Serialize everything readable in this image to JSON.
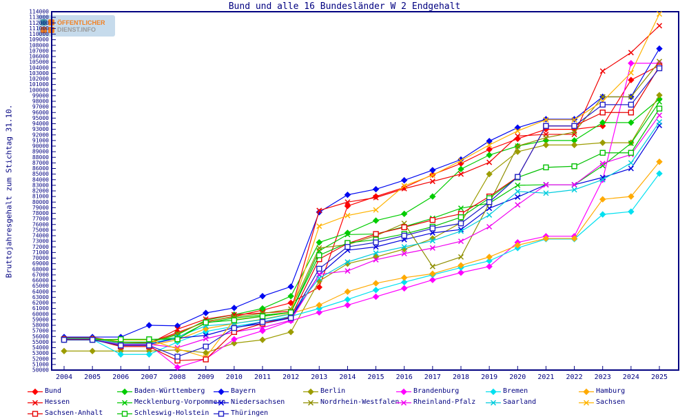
{
  "header": {
    "title": "Bund und alle 16 Bundesländer W 2 Endgehalt",
    "logo": {
      "line1": "ÖFFENTLICHER",
      "line2": "DIENST.INFO"
    }
  },
  "colors": {
    "axis": "#000080",
    "text": "#000080",
    "background": "#ffffff",
    "logo_bg": "#c6dbec",
    "logo_orange": "#f28122",
    "logo_teal": "#3f96a5",
    "logo_gray": "#9b9b9b"
  },
  "chart_data": {
    "type": "line",
    "title": "Bund und alle 16 Bundesländer W 2 Endgehalt",
    "xlabel": "",
    "ylabel": "Bruttojahresgehalt zum Stichtag 31.10.",
    "ylim": [
      50000,
      114000
    ],
    "y_tick_step": 1000,
    "grid": false,
    "legend_position": "bottom",
    "x": [
      2004,
      2005,
      2006,
      2007,
      2008,
      2009,
      2010,
      2011,
      2012,
      2013,
      2014,
      2015,
      2016,
      2017,
      2018,
      2019,
      2020,
      2021,
      2022,
      2023,
      2024,
      2025
    ],
    "series": [
      {
        "name": "Bund",
        "color": "#ff0000",
        "marker": "diamond",
        "values": [
          55800,
          55800,
          55000,
          54900,
          56700,
          58600,
          59600,
          60700,
          62000,
          64800,
          79300,
          81000,
          82600,
          84900,
          86900,
          89400,
          91300,
          93000,
          93000,
          93600,
          101800,
          104400
        ]
      },
      {
        "name": "Baden-Württemberg",
        "color": "#00cc00",
        "marker": "diamond",
        "values": [
          55700,
          55700,
          55000,
          55000,
          56300,
          58900,
          59900,
          61000,
          63200,
          72800,
          74500,
          76700,
          77900,
          81000,
          85900,
          88400,
          90000,
          91000,
          91000,
          94200,
          94200,
          98400
        ]
      },
      {
        "name": "Bayern",
        "color": "#0008f0",
        "marker": "diamond",
        "values": [
          55900,
          55900,
          55900,
          58000,
          57900,
          60200,
          61100,
          63200,
          64900,
          78200,
          81300,
          82300,
          83900,
          85700,
          87600,
          90900,
          93300,
          94800,
          94800,
          98800,
          98800,
          107400
        ]
      },
      {
        "name": "Berlin",
        "color": "#9c9c00",
        "marker": "diamond",
        "values": [
          53400,
          53400,
          53400,
          53400,
          53600,
          53100,
          54800,
          55400,
          56800,
          65900,
          69000,
          70200,
          71600,
          73500,
          76300,
          85000,
          89000,
          90200,
          90200,
          90600,
          90600,
          99100
        ]
      },
      {
        "name": "Brandenburg",
        "color": "#ff00ff",
        "marker": "diamond",
        "values": [
          55400,
          55400,
          54500,
          54500,
          50500,
          52000,
          55500,
          57000,
          58800,
          60300,
          61600,
          63100,
          64600,
          66100,
          67400,
          68500,
          72800,
          73900,
          73900,
          84000,
          104800,
          104800
        ]
      },
      {
        "name": "Bremen",
        "color": "#00e0f0",
        "marker": "diamond",
        "values": [
          55500,
          55500,
          52800,
          52800,
          55000,
          56900,
          57800,
          58600,
          59600,
          61000,
          62600,
          64300,
          65700,
          67000,
          68300,
          69500,
          71800,
          73400,
          73400,
          77800,
          78300,
          85100
        ]
      },
      {
        "name": "Hamburg",
        "color": "#ffaa00",
        "marker": "diamond",
        "values": [
          55600,
          55600,
          54400,
          54400,
          55400,
          57400,
          58300,
          59100,
          60100,
          61600,
          64000,
          65500,
          66500,
          67200,
          68700,
          70200,
          72300,
          73500,
          73500,
          80500,
          81000,
          87200
        ]
      },
      {
        "name": "Hessen",
        "color": "#f10000",
        "marker": "x",
        "values": [
          55600,
          55600,
          54700,
          54700,
          57300,
          59100,
          59900,
          60200,
          60500,
          78500,
          80000,
          80800,
          82400,
          83700,
          85000,
          87100,
          91800,
          92100,
          92100,
          103400,
          106700,
          111500
        ]
      },
      {
        "name": "Mecklenburg-Vorpommern",
        "color": "#00c800",
        "marker": "x",
        "values": [
          55500,
          55500,
          55400,
          55400,
          55800,
          58400,
          59300,
          59800,
          60300,
          71300,
          74200,
          74300,
          75600,
          77100,
          78900,
          79800,
          83000,
          83100,
          83100,
          86500,
          90500,
          97900
        ]
      },
      {
        "name": "Niedersachsen",
        "color": "#0000dc",
        "marker": "x",
        "values": [
          55500,
          55500,
          54600,
          54600,
          55700,
          56200,
          57600,
          58300,
          59300,
          67000,
          71400,
          72000,
          73300,
          74500,
          75100,
          78900,
          80900,
          83100,
          83100,
          84400,
          86000,
          93700
        ]
      },
      {
        "name": "Nordrhein-Westfalen",
        "color": "#8f8f00",
        "marker": "x",
        "values": [
          55600,
          55600,
          54800,
          54800,
          56500,
          58700,
          59500,
          60100,
          60900,
          71800,
          72400,
          74000,
          76200,
          68500,
          70200,
          79800,
          90000,
          91500,
          92500,
          98800,
          98800,
          105100
        ]
      },
      {
        "name": "Rheinland-Pfalz",
        "color": "#f000f0",
        "marker": "x",
        "values": [
          55500,
          55500,
          54600,
          54600,
          54000,
          55600,
          56800,
          57600,
          58900,
          67100,
          67700,
          69700,
          70800,
          71800,
          73000,
          75600,
          79500,
          83100,
          83100,
          86900,
          88500,
          95500
        ]
      },
      {
        "name": "Saarland",
        "color": "#00ccdd",
        "marker": "x",
        "values": [
          55600,
          55600,
          54700,
          54700,
          55900,
          57900,
          58300,
          59000,
          60000,
          66400,
          69300,
          70900,
          72000,
          73100,
          74800,
          77700,
          81900,
          81600,
          82200,
          84000,
          87000,
          94300
        ]
      },
      {
        "name": "Sachsen",
        "color": "#ffb300",
        "marker": "x",
        "values": [
          55400,
          55400,
          55400,
          55400,
          53800,
          52300,
          59000,
          59600,
          60300,
          75700,
          77600,
          78600,
          82900,
          84800,
          87400,
          90200,
          92700,
          94700,
          94700,
          98000,
          103100,
          113600
        ]
      },
      {
        "name": "Sachsen-Anhalt",
        "color": "#e60000",
        "marker": "square",
        "values": [
          55500,
          55500,
          54200,
          54200,
          51700,
          51900,
          56800,
          58300,
          59500,
          69800,
          72600,
          74300,
          75500,
          76800,
          77900,
          81000,
          84500,
          93600,
          93600,
          96000,
          96000,
          104200
        ]
      },
      {
        "name": "Schleswig-Holstein",
        "color": "#00c000",
        "marker": "square",
        "values": [
          55400,
          55400,
          55500,
          55500,
          55500,
          58500,
          58900,
          59600,
          60300,
          70500,
          72700,
          73300,
          74300,
          75600,
          77300,
          80700,
          84400,
          86200,
          86400,
          88800,
          88800,
          96700
        ]
      },
      {
        "name": "Thüringen",
        "color": "#1f1fc8",
        "marker": "square",
        "values": [
          55400,
          55400,
          54400,
          54400,
          52400,
          54200,
          57500,
          58600,
          59300,
          68100,
          72000,
          72800,
          74000,
          75300,
          76200,
          80000,
          84500,
          93600,
          93600,
          97400,
          97400,
          103900
        ]
      }
    ]
  },
  "legend": {
    "columns": [
      [
        "Bund",
        "Hessen",
        "Sachsen-Anhalt"
      ],
      [
        "Baden-Württemberg",
        "Mecklenburg-Vorpommern",
        "Schleswig-Holstein"
      ],
      [
        "Bayern",
        "Niedersachsen",
        "Thüringen"
      ],
      [
        "Berlin",
        "Nordrhein-Westfalen"
      ],
      [
        "Brandenburg",
        "Rheinland-Pfalz"
      ],
      [
        "Bremen",
        "Saarland"
      ],
      [
        "Hamburg",
        "Sachsen"
      ]
    ]
  }
}
